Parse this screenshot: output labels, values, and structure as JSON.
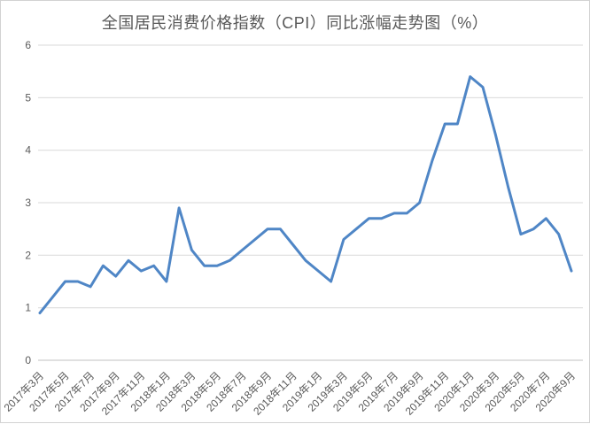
{
  "chart_data": {
    "type": "line",
    "title": "全国居民消费价格指数（CPI）同比涨幅走势图（%）",
    "x": [
      "2017年3月",
      "2017年4月",
      "2017年5月",
      "2017年6月",
      "2017年7月",
      "2017年8月",
      "2017年9月",
      "2017年10月",
      "2017年11月",
      "2017年12月",
      "2018年1月",
      "2018年2月",
      "2018年3月",
      "2018年4月",
      "2018年5月",
      "2018年6月",
      "2018年7月",
      "2018年8月",
      "2018年9月",
      "2018年10月",
      "2018年11月",
      "2018年12月",
      "2019年1月",
      "2019年2月",
      "2019年3月",
      "2019年4月",
      "2019年5月",
      "2019年6月",
      "2019年7月",
      "2019年8月",
      "2019年9月",
      "2019年10月",
      "2019年11月",
      "2019年12月",
      "2020年1月",
      "2020年2月",
      "2020年3月",
      "2020年4月",
      "2020年5月",
      "2020年6月",
      "2020年7月",
      "2020年8月",
      "2020年9月"
    ],
    "values": [
      0.9,
      1.2,
      1.5,
      1.5,
      1.4,
      1.8,
      1.6,
      1.9,
      1.7,
      1.8,
      1.5,
      2.9,
      2.1,
      1.8,
      1.8,
      1.9,
      2.1,
      2.3,
      2.5,
      2.5,
      2.2,
      1.9,
      1.7,
      1.5,
      2.3,
      2.5,
      2.7,
      2.7,
      2.8,
      2.8,
      3.0,
      3.8,
      4.5,
      4.5,
      5.4,
      5.2,
      4.3,
      3.3,
      2.4,
      2.5,
      2.7,
      2.4,
      1.7
    ],
    "x_tick_labels": [
      "2017年3月",
      "2017年5月",
      "2017年7月",
      "2017年9月",
      "2017年11月",
      "2018年1月",
      "2018年3月",
      "2018年5月",
      "2018年7月",
      "2018年9月",
      "2018年11月",
      "2019年1月",
      "2019年3月",
      "2019年5月",
      "2019年7月",
      "2019年9月",
      "2019年11月",
      "2020年1月",
      "2020年3月",
      "2020年5月",
      "2020年7月",
      "2020年9月"
    ],
    "x_tick_every": 2,
    "y_ticks": [
      0,
      1,
      2,
      3,
      4,
      5,
      6
    ],
    "ylim": [
      0,
      6
    ],
    "grid": true,
    "legend": "none",
    "xlabel": "",
    "ylabel": "",
    "line_color": "#4f86c6",
    "label_color": "#595959",
    "grid_color": "#d9d9d9",
    "axis_color": "#c0c0c0",
    "background_color": "#ffffff"
  }
}
